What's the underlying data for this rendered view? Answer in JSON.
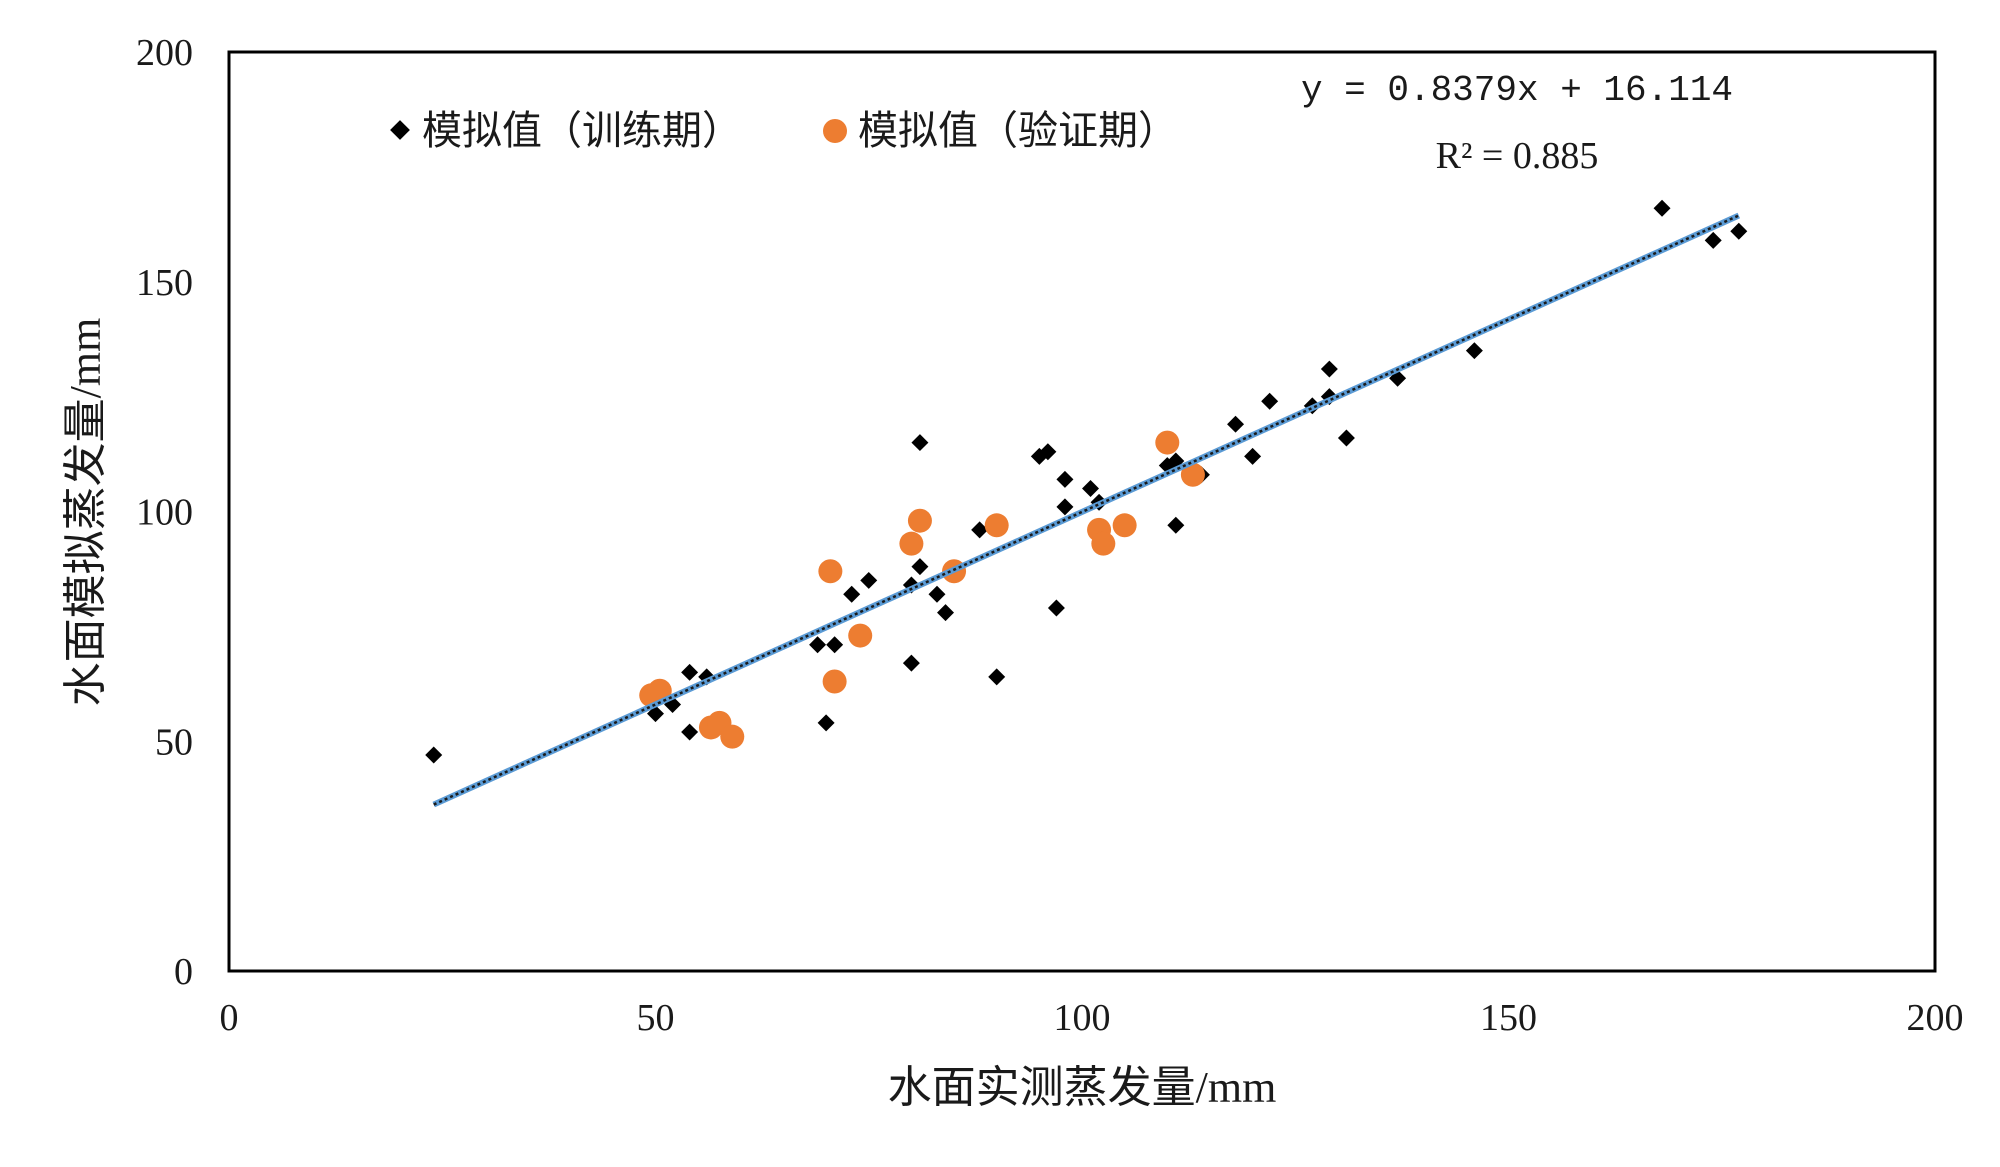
{
  "chart_data": {
    "type": "scatter",
    "xlabel": "水面实测蒸发量/mm",
    "ylabel": "水面模拟蒸发量/mm",
    "xlim": [
      0,
      200
    ],
    "ylim": [
      0,
      200
    ],
    "xticks": [
      0,
      50,
      100,
      150,
      200
    ],
    "yticks": [
      0,
      50,
      100,
      150,
      200
    ],
    "grid": false,
    "legend_position": "top-left",
    "series": [
      {
        "name": "模拟值（训练期）",
        "marker": "diamond",
        "color": "#000000",
        "points": [
          [
            24,
            47
          ],
          [
            50,
            56
          ],
          [
            52,
            58
          ],
          [
            54,
            52
          ],
          [
            54,
            65
          ],
          [
            56,
            64
          ],
          [
            69,
            71
          ],
          [
            70,
            54
          ],
          [
            71,
            71
          ],
          [
            73,
            82
          ],
          [
            75,
            85
          ],
          [
            80,
            84
          ],
          [
            80,
            67
          ],
          [
            81,
            88
          ],
          [
            81,
            115
          ],
          [
            83,
            82
          ],
          [
            84,
            78
          ],
          [
            88,
            96
          ],
          [
            90,
            64
          ],
          [
            95,
            112
          ],
          [
            96,
            113
          ],
          [
            97,
            79
          ],
          [
            98,
            107
          ],
          [
            98,
            101
          ],
          [
            101,
            105
          ],
          [
            102,
            102
          ],
          [
            110,
            110
          ],
          [
            111,
            97
          ],
          [
            111,
            111
          ],
          [
            114,
            108
          ],
          [
            118,
            119
          ],
          [
            120,
            112
          ],
          [
            122,
            124
          ],
          [
            127,
            123
          ],
          [
            129,
            125
          ],
          [
            129,
            131
          ],
          [
            131,
            116
          ],
          [
            137,
            129
          ],
          [
            146,
            135
          ],
          [
            168,
            166
          ],
          [
            174,
            159
          ],
          [
            177,
            161
          ]
        ]
      },
      {
        "name": "模拟值（验证期）",
        "marker": "circle",
        "color": "#ED7D31",
        "points": [
          [
            49.5,
            60
          ],
          [
            50.5,
            61
          ],
          [
            56.5,
            53
          ],
          [
            57.5,
            54
          ],
          [
            59,
            51
          ],
          [
            70.5,
            87
          ],
          [
            71,
            63
          ],
          [
            74,
            73
          ],
          [
            80,
            93
          ],
          [
            81,
            98
          ],
          [
            85,
            87
          ],
          [
            90,
            97
          ],
          [
            102,
            96
          ],
          [
            102.5,
            93
          ],
          [
            105,
            97
          ],
          [
            110,
            115
          ],
          [
            113,
            108
          ]
        ]
      }
    ],
    "trendline": {
      "slope": 0.8379,
      "intercept": 16.114,
      "x_range": [
        24,
        177
      ],
      "color": "#5B9BD5"
    },
    "annotations": {
      "equation": "y = 0.8379x + 16.114",
      "r2": "R² = 0.885"
    }
  }
}
